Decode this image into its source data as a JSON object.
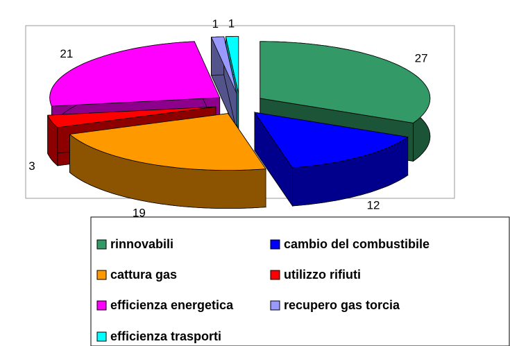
{
  "chart_data": {
    "type": "pie3d",
    "categories": [
      "rinnovabili",
      "cambio del combustibile",
      "cattura gas",
      "utilizzo rifiuti",
      "efficienza energetica",
      "recupero gas torcia",
      "efficienza trasporti"
    ],
    "values": [
      27,
      12,
      19,
      3,
      21,
      1,
      1
    ],
    "colors": [
      "#339966",
      "#0000ff",
      "#ff9900",
      "#ff0000",
      "#ff00ff",
      "#9999ff",
      "#00ffff"
    ],
    "legend": "bottom"
  }
}
